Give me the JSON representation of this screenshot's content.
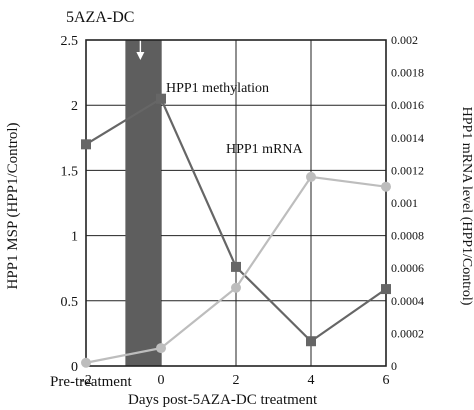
{
  "chart_data": {
    "type": "line",
    "title": "",
    "treatment_label": "5AZA-DC",
    "x": [
      -2,
      0,
      2,
      4,
      6
    ],
    "xlim": [
      -2,
      6
    ],
    "x_ticks": [
      "-2",
      "0",
      "2",
      "4",
      "6"
    ],
    "xlabel_pre": "Pre-treatment",
    "xlabel": "Days post-5AZA-DC treatment",
    "ylabel_left": "HPP1 MSP (HPP1/Control)",
    "ylim_left": [
      0,
      2.5
    ],
    "y_ticks_left": [
      "0",
      "0.5",
      "1",
      "1.5",
      "2",
      "2.5"
    ],
    "ylabel_right": "HPP1 mRNA level (HPP1/Control)",
    "ylim_right": [
      0,
      0.002
    ],
    "y_ticks_right": [
      "0",
      "0.0002",
      "0.0004",
      "0.0006",
      "0.0008",
      "0.001",
      "0.0012",
      "0.0014",
      "0.0016",
      "0.0018",
      "0.002"
    ],
    "treatment_band": [
      -0.95,
      0
    ],
    "grid": true,
    "series": [
      {
        "name": "HPP1 methylation",
        "axis": "left",
        "values": [
          1.7,
          2.05,
          0.76,
          0.19,
          0.59
        ],
        "color": "#666666",
        "marker": "square"
      },
      {
        "name": "HPP1 mRNA",
        "axis": "right",
        "values": [
          2e-05,
          0.00011,
          0.00048,
          0.00116,
          0.0011
        ],
        "color": "#bdbdbd",
        "marker": "circle"
      }
    ]
  }
}
